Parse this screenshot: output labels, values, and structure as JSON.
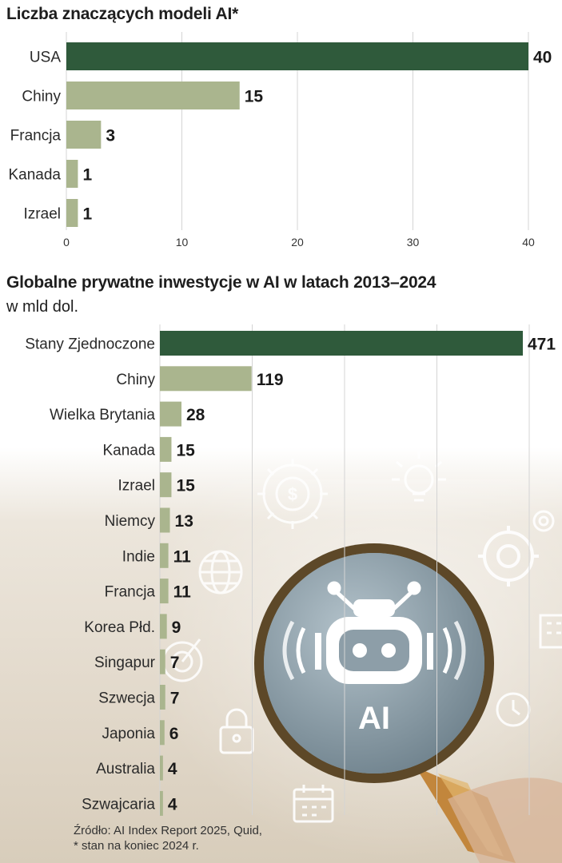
{
  "source_lines": [
    "Źródło: AI Index Report 2025, Quid,",
    "* stan na koniec 2024 r."
  ],
  "decor": {
    "badge_text": "AI"
  },
  "colors": {
    "highlight": "#2f5a3b",
    "bar": "#aab58e"
  },
  "chart_data": [
    {
      "type": "bar",
      "orientation": "horizontal",
      "title": "Liczba znaczących modeli AI*",
      "categories": [
        "USA",
        "Chiny",
        "Francja",
        "Kanada",
        "Izrael"
      ],
      "values": [
        40,
        15,
        3,
        1,
        1
      ],
      "value_labels": [
        "40",
        "15",
        "3",
        "1",
        "1"
      ],
      "xlim": [
        0,
        40
      ],
      "xticks": [
        0,
        10,
        20,
        30,
        40
      ],
      "grid": true
    },
    {
      "type": "bar",
      "orientation": "horizontal",
      "title": "Globalne prywatne inwestycje w AI w latach 2013–2024",
      "subtitle": "w mld dol.",
      "categories": [
        "Stany Zjednoczone",
        "Chiny",
        "Wielka Brytania",
        "Kanada",
        "Izrael",
        "Niemcy",
        "Indie",
        "Francja",
        "Korea Płd.",
        "Singapur",
        "Szwecja",
        "Japonia",
        "Australia",
        "Szwajcaria"
      ],
      "values": [
        471,
        119,
        28,
        15,
        15,
        13,
        11,
        11,
        9,
        7,
        7,
        6,
        4,
        4
      ],
      "value_labels": [
        "471",
        "119",
        "28",
        "15",
        "15",
        "13",
        "11",
        "11",
        "9",
        "7",
        "7",
        "6",
        "4",
        "4"
      ],
      "xlim": [
        0,
        471
      ],
      "grid": true
    }
  ]
}
